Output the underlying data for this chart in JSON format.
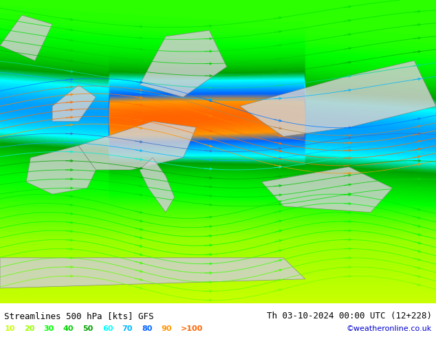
{
  "title_left": "Streamlines 500 hPa [kts] GFS",
  "title_right": "Th 03-10-2024 00:00 UTC (12+228)",
  "credit": "©weatheronline.co.uk",
  "legend_values": [
    "10",
    "20",
    "30",
    "40",
    "50",
    "60",
    "70",
    "80",
    "90",
    ">100"
  ],
  "legend_colors": [
    "#c8ff00",
    "#96ff00",
    "#00ff00",
    "#00d000",
    "#00a000",
    "#00ffff",
    "#00b4ff",
    "#0064ff",
    "#ff9600",
    "#ff6400"
  ],
  "bg_color": "#c8ff96",
  "land_color": "#d0d0d0",
  "border_color": "#808080",
  "fig_width": 6.34,
  "fig_height": 4.9,
  "dpi": 100,
  "bottom_bar_color": "#ffffff",
  "bottom_bar_height": 0.1,
  "font_size_title": 9,
  "font_size_legend": 8,
  "font_size_credit": 8
}
